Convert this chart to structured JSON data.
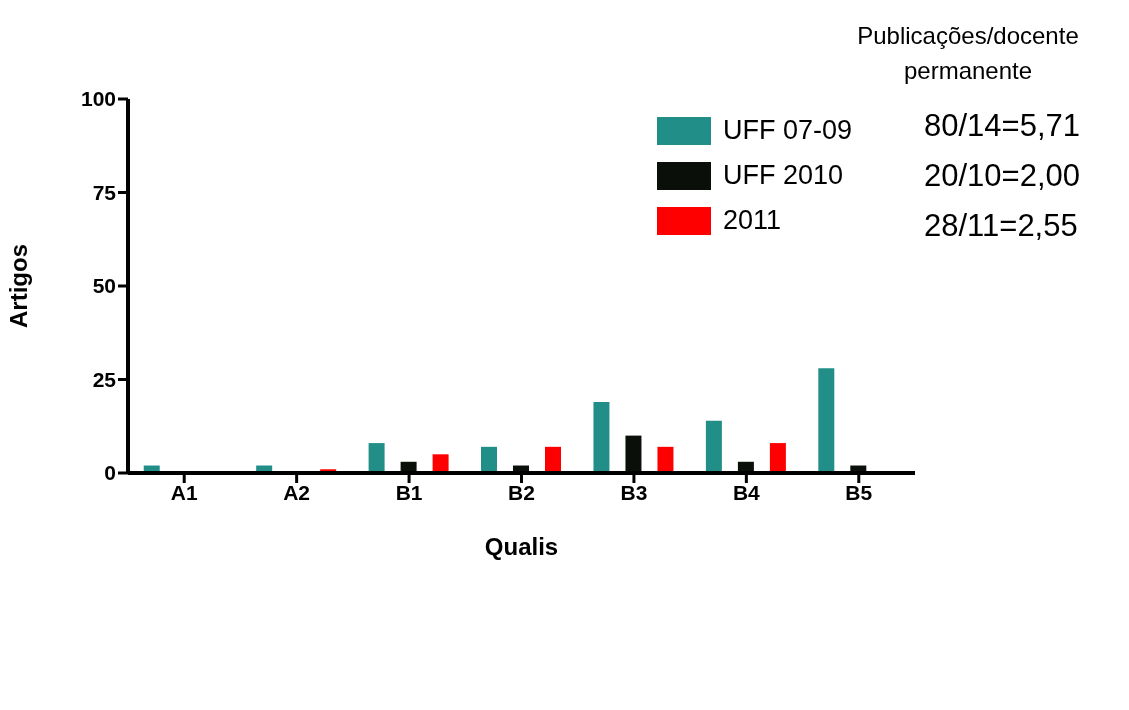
{
  "chart_data": {
    "type": "bar",
    "xlabel": "Qualis",
    "ylabel": "Artigos",
    "categories": [
      "A1",
      "A2",
      "B1",
      "B2",
      "B3",
      "B4",
      "B5"
    ],
    "series": [
      {
        "name": "UFF 07-09",
        "color": "#218f88",
        "values": [
          2,
          2,
          8,
          7,
          19,
          14,
          28
        ]
      },
      {
        "name": "UFF 2010",
        "color": "#0a0f0a",
        "values": [
          0,
          0,
          3,
          2,
          10,
          3,
          2
        ]
      },
      {
        "name": "2011",
        "color": "#ff0000",
        "values": [
          0,
          1,
          5,
          7,
          7,
          8,
          0
        ]
      }
    ],
    "ylim": [
      0,
      100
    ],
    "yticks": [
      0,
      25,
      50,
      75,
      100
    ],
    "grid": false,
    "legend": "top right",
    "annotations": [
      "Publicações/docente permanente",
      "80/14=5,71",
      "20/10=2,00",
      "28/11=2,55"
    ]
  }
}
